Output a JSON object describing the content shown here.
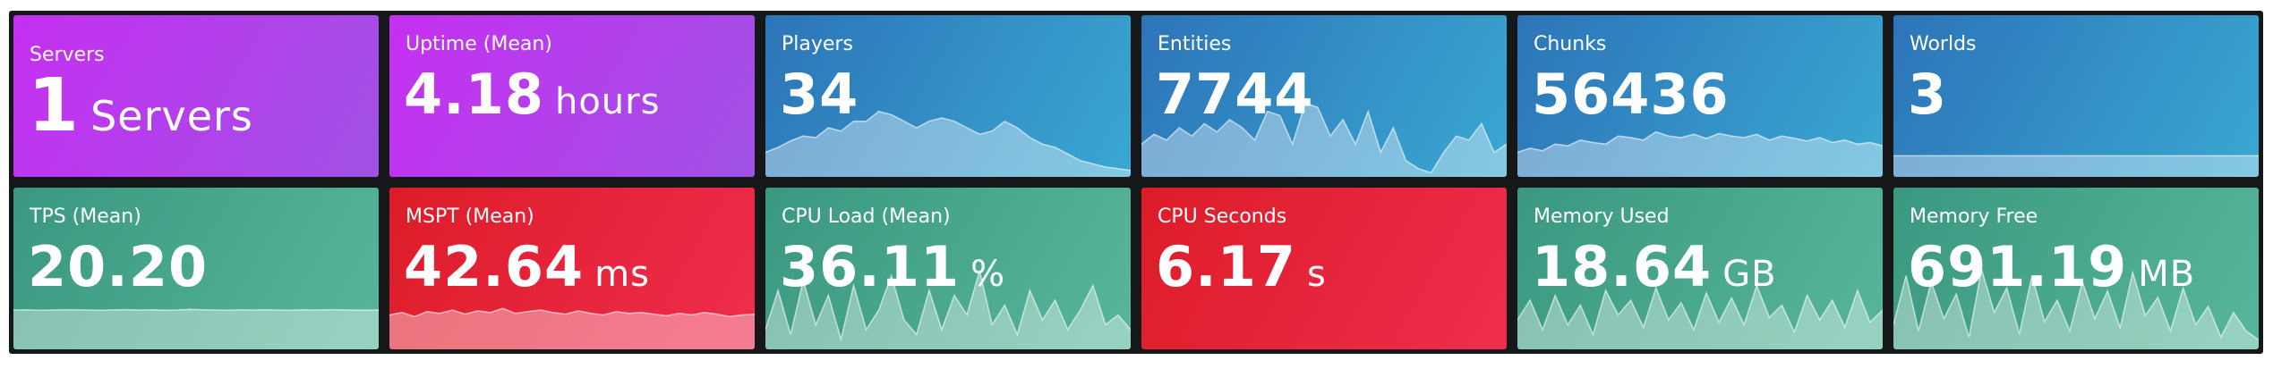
{
  "panels": [
    {
      "title": "Servers",
      "value": "1",
      "unit": "Servers",
      "color": "purple",
      "big": true
    },
    {
      "title": "Uptime (Mean)",
      "value": "4.18",
      "unit": "hours",
      "color": "purple"
    },
    {
      "title": "Players",
      "value": "34",
      "color": "blue",
      "ylim": [
        0,
        60
      ],
      "sparkline": [
        15,
        18,
        22,
        25,
        24,
        30,
        28,
        34,
        34,
        40,
        38,
        34,
        30,
        34,
        36,
        34,
        30,
        26,
        28,
        34,
        30,
        24,
        20,
        18,
        14,
        10,
        8,
        6,
        5,
        4
      ]
    },
    {
      "title": "Entities",
      "value": "7744",
      "color": "blue",
      "ylim": [
        0,
        12000
      ],
      "sparkline": [
        4000,
        5200,
        4500,
        6000,
        5000,
        6500,
        5500,
        7000,
        6000,
        4500,
        8000,
        7500,
        4000,
        9000,
        8500,
        5000,
        7000,
        4000,
        8000,
        3000,
        6000,
        2000,
        1000,
        500,
        3000,
        5000,
        4500,
        6500,
        3000,
        4000
      ]
    },
    {
      "title": "Chunks",
      "value": "56436",
      "color": "blue",
      "ylim": [
        0,
        120000
      ],
      "sparkline": [
        30000,
        35000,
        32000,
        40000,
        38000,
        45000,
        42000,
        40000,
        50000,
        48000,
        45000,
        55000,
        50000,
        48000,
        52000,
        47000,
        53000,
        50000,
        48000,
        52000,
        45000,
        50000,
        47000,
        44000,
        48000,
        42000,
        45000,
        40000,
        42000,
        38000
      ]
    },
    {
      "title": "Worlds",
      "value": "3",
      "color": "blue",
      "ylim": [
        0,
        14
      ],
      "sparkline": [
        3,
        3,
        3,
        3,
        3,
        3,
        3,
        3,
        3,
        3,
        3,
        3,
        3,
        3,
        3,
        3,
        3,
        3,
        3,
        3,
        3,
        3,
        3,
        3,
        3,
        3,
        3,
        3,
        3,
        3
      ]
    },
    {
      "title": "TPS (Mean)",
      "value": "20.20",
      "color": "green",
      "ylim": [
        0,
        50
      ],
      "sparkline": [
        20,
        20.1,
        19.9,
        20,
        20.2,
        20.1,
        20,
        19.8,
        20.1,
        20.2,
        20,
        20.1,
        19.9,
        20,
        20.3,
        20.1,
        20,
        19.9,
        20.1,
        20,
        20.2,
        20,
        19.9,
        20.1,
        20,
        20.2,
        20.1,
        20,
        19.9,
        20
      ]
    },
    {
      "title": "MSPT (Mean)",
      "value": "42.64",
      "unit": "ms",
      "color": "red",
      "ylim": [
        0,
        120
      ],
      "sparkline": [
        42,
        45,
        40,
        46,
        44,
        48,
        43,
        47,
        45,
        50,
        44,
        46,
        48,
        45,
        43,
        47,
        44,
        42,
        46,
        44,
        45,
        43,
        41,
        44,
        42,
        45,
        43,
        40,
        42,
        43
      ]
    },
    {
      "title": "CPU Load (Mean)",
      "value": "36.11",
      "unit": "%",
      "color": "green",
      "ylim": [
        0,
        100
      ],
      "sparkline": [
        20,
        60,
        15,
        70,
        25,
        55,
        10,
        65,
        20,
        40,
        75,
        30,
        15,
        60,
        20,
        55,
        35,
        80,
        25,
        45,
        15,
        60,
        30,
        50,
        20,
        40,
        65,
        25,
        35,
        20
      ]
    },
    {
      "title": "CPU Seconds",
      "value": "6.17",
      "unit": "s",
      "color": "red"
    },
    {
      "title": "Memory Used",
      "value": "18.64",
      "unit": "GB",
      "color": "green",
      "ylim": [
        0,
        40
      ],
      "sparkline": [
        12,
        20,
        8,
        22,
        10,
        18,
        6,
        24,
        14,
        20,
        9,
        25,
        12,
        19,
        8,
        23,
        11,
        21,
        10,
        26,
        13,
        18,
        7,
        22,
        12,
        20,
        9,
        24,
        11,
        16
      ]
    },
    {
      "title": "Memory Free",
      "value": "691.19",
      "unit": "MB",
      "color": "green",
      "ylim": [
        0,
        1600
      ],
      "sparkline": [
        400,
        1200,
        300,
        1100,
        500,
        900,
        200,
        1300,
        600,
        1000,
        250,
        1200,
        450,
        800,
        300,
        1100,
        500,
        950,
        350,
        1250,
        550,
        850,
        300,
        1000,
        400,
        700,
        200,
        600,
        300,
        150
      ]
    }
  ]
}
